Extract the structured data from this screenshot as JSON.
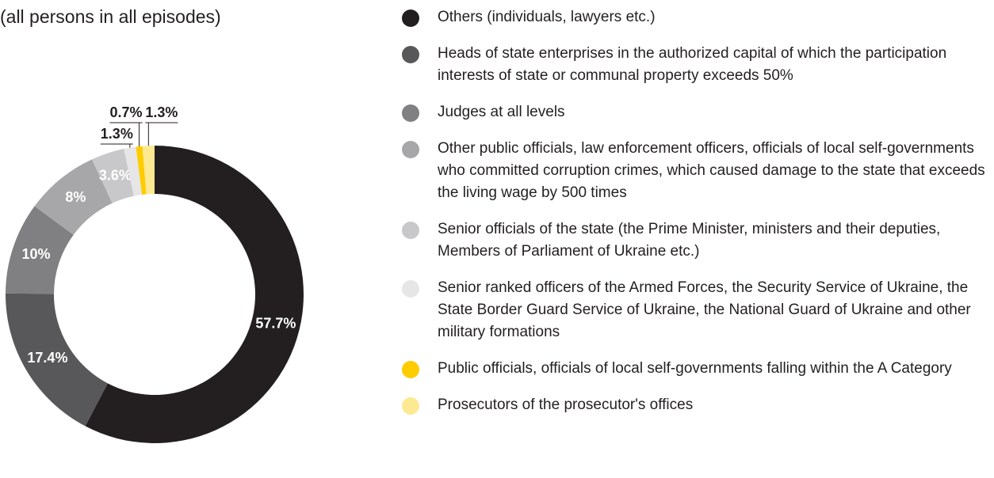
{
  "chart_data": {
    "type": "donut",
    "subtitle": "(all persons in all episodes)",
    "categories": [
      "Others (individuals, lawyers etc.)",
      "Heads of state enterprises in the authorized capital of which the participation interests of state or communal property exceeds 50%",
      "Judges at all levels",
      "Other public officials, law enforcement officers, officials of local self-governments who committed corruption crimes, which caused damage to the state that exceeds the living wage by 500 times",
      "Senior officials of the state (the Prime Minister, ministers and their deputies, Members of Parliament of Ukraine etc.)",
      "Senior ranked officers of the Armed Forces, the Security Service of Ukraine, the State Border Guard Service of Ukraine, the National Guard of Ukraine and other military formations",
      "Public officials, officials of local self-governments falling within the A Category",
      "Prosecutors of the prosecutor's offices"
    ],
    "values": [
      57.7,
      17.4,
      10,
      8,
      3.6,
      1.3,
      0.7,
      1.3
    ],
    "value_labels": [
      "57.7%",
      "17.4%",
      "10%",
      "8%",
      "3.6%",
      "1.3%",
      "0.7%",
      "1.3%"
    ],
    "colors": [
      "#231f20",
      "#58585a",
      "#808083",
      "#a7a7a9",
      "#c8c8ca",
      "#e6e6e7",
      "#ffcc00",
      "#fde992"
    ]
  }
}
